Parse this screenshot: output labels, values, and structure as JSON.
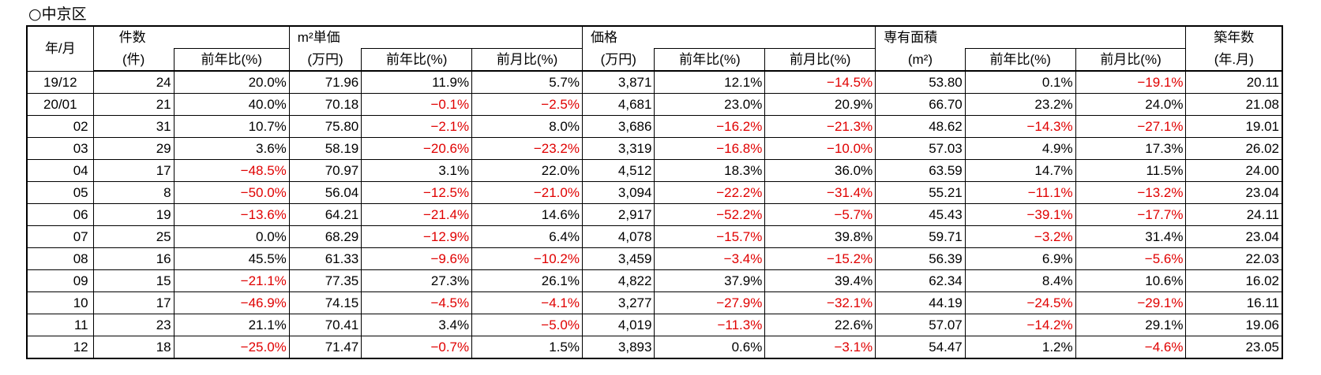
{
  "title": "○中京区",
  "headers": {
    "ym": "年/月",
    "count": "件数",
    "count_unit": "(件)",
    "unit_price": "m²単価",
    "unit_price_unit": "(万円)",
    "price": "価格",
    "price_unit": "(万円)",
    "area": "専有面積",
    "area_unit": "(m²)",
    "age": "築年数",
    "age_unit": "(年.月)",
    "yoy": "前年比(%)",
    "mom": "前月比(%)"
  },
  "rows": [
    {
      "ym": "19/12",
      "count": "24",
      "count_yoy": "20.0%",
      "up": "71.96",
      "up_yoy": "11.9%",
      "up_mom": "5.7%",
      "price": "3,871",
      "p_yoy": "12.1%",
      "p_mom": "−14.5%",
      "area": "53.80",
      "a_yoy": "0.1%",
      "a_mom": "−19.1%",
      "age": "20.11"
    },
    {
      "ym": "20/01",
      "count": "21",
      "count_yoy": "40.0%",
      "up": "70.18",
      "up_yoy": "−0.1%",
      "up_mom": "−2.5%",
      "price": "4,681",
      "p_yoy": "23.0%",
      "p_mom": "20.9%",
      "area": "66.70",
      "a_yoy": "23.2%",
      "a_mom": "24.0%",
      "age": "21.08"
    },
    {
      "ym": "02",
      "count": "31",
      "count_yoy": "10.7%",
      "up": "75.80",
      "up_yoy": "−2.1%",
      "up_mom": "8.0%",
      "price": "3,686",
      "p_yoy": "−16.2%",
      "p_mom": "−21.3%",
      "area": "48.62",
      "a_yoy": "−14.3%",
      "a_mom": "−27.1%",
      "age": "19.01"
    },
    {
      "ym": "03",
      "count": "29",
      "count_yoy": "3.6%",
      "up": "58.19",
      "up_yoy": "−20.6%",
      "up_mom": "−23.2%",
      "price": "3,319",
      "p_yoy": "−16.8%",
      "p_mom": "−10.0%",
      "area": "57.03",
      "a_yoy": "4.9%",
      "a_mom": "17.3%",
      "age": "26.02"
    },
    {
      "ym": "04",
      "count": "17",
      "count_yoy": "−48.5%",
      "up": "70.97",
      "up_yoy": "3.1%",
      "up_mom": "22.0%",
      "price": "4,512",
      "p_yoy": "18.3%",
      "p_mom": "36.0%",
      "area": "63.59",
      "a_yoy": "14.7%",
      "a_mom": "11.5%",
      "age": "24.00"
    },
    {
      "ym": "05",
      "count": "8",
      "count_yoy": "−50.0%",
      "up": "56.04",
      "up_yoy": "−12.5%",
      "up_mom": "−21.0%",
      "price": "3,094",
      "p_yoy": "−22.2%",
      "p_mom": "−31.4%",
      "area": "55.21",
      "a_yoy": "−11.1%",
      "a_mom": "−13.2%",
      "age": "23.04"
    },
    {
      "ym": "06",
      "count": "19",
      "count_yoy": "−13.6%",
      "up": "64.21",
      "up_yoy": "−21.4%",
      "up_mom": "14.6%",
      "price": "2,917",
      "p_yoy": "−52.2%",
      "p_mom": "−5.7%",
      "area": "45.43",
      "a_yoy": "−39.1%",
      "a_mom": "−17.7%",
      "age": "24.11"
    },
    {
      "ym": "07",
      "count": "25",
      "count_yoy": "0.0%",
      "up": "68.29",
      "up_yoy": "−12.9%",
      "up_mom": "6.4%",
      "price": "4,078",
      "p_yoy": "−15.7%",
      "p_mom": "39.8%",
      "area": "59.71",
      "a_yoy": "−3.2%",
      "a_mom": "31.4%",
      "age": "23.04"
    },
    {
      "ym": "08",
      "count": "16",
      "count_yoy": "45.5%",
      "up": "61.33",
      "up_yoy": "−9.6%",
      "up_mom": "−10.2%",
      "price": "3,459",
      "p_yoy": "−3.4%",
      "p_mom": "−15.2%",
      "area": "56.39",
      "a_yoy": "6.9%",
      "a_mom": "−5.6%",
      "age": "22.03"
    },
    {
      "ym": "09",
      "count": "15",
      "count_yoy": "−21.1%",
      "up": "77.35",
      "up_yoy": "27.3%",
      "up_mom": "26.1%",
      "price": "4,822",
      "p_yoy": "37.9%",
      "p_mom": "39.4%",
      "area": "62.34",
      "a_yoy": "8.4%",
      "a_mom": "10.6%",
      "age": "16.02"
    },
    {
      "ym": "10",
      "count": "17",
      "count_yoy": "−46.9%",
      "up": "74.15",
      "up_yoy": "−4.5%",
      "up_mom": "−4.1%",
      "price": "3,277",
      "p_yoy": "−27.9%",
      "p_mom": "−32.1%",
      "area": "44.19",
      "a_yoy": "−24.5%",
      "a_mom": "−29.1%",
      "age": "16.11"
    },
    {
      "ym": "11",
      "count": "23",
      "count_yoy": "21.1%",
      "up": "70.41",
      "up_yoy": "3.4%",
      "up_mom": "−5.0%",
      "price": "4,019",
      "p_yoy": "−11.3%",
      "p_mom": "22.6%",
      "area": "57.07",
      "a_yoy": "−14.2%",
      "a_mom": "29.1%",
      "age": "19.06"
    },
    {
      "ym": "12",
      "count": "18",
      "count_yoy": "−25.0%",
      "up": "71.47",
      "up_yoy": "−0.7%",
      "up_mom": "1.5%",
      "price": "3,893",
      "p_yoy": "0.6%",
      "p_mom": "−3.1%",
      "area": "54.47",
      "a_yoy": "1.2%",
      "a_mom": "−4.6%",
      "age": "23.05"
    }
  ],
  "colors": {
    "negative": "#e00000",
    "text": "#000000"
  }
}
